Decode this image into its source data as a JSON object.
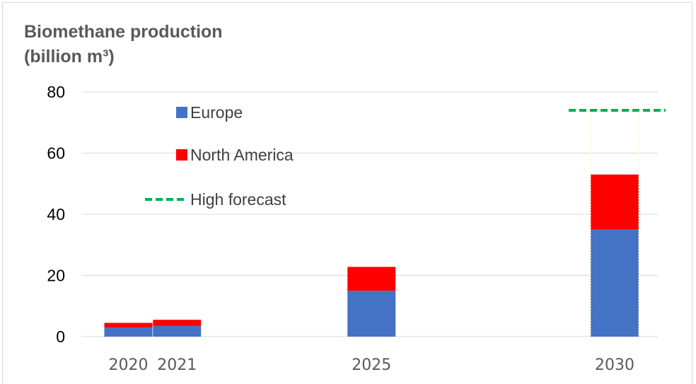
{
  "chart_data": {
    "type": "bar",
    "stacked": true,
    "title_line1": "Biomethane production",
    "title_line2": "(billion m³)",
    "categories": [
      "2020",
      "2021",
      "2025",
      "2030"
    ],
    "x_positions": [
      2020,
      2021,
      2025,
      2030
    ],
    "series": [
      {
        "name": "Europe",
        "values": [
          3,
          3.5,
          15,
          35
        ],
        "color": "#4472c4"
      },
      {
        "name": "North America",
        "values": [
          1.5,
          2,
          7.8,
          18
        ],
        "color": "#ff0000"
      }
    ],
    "high_forecast": {
      "name": "High forecast",
      "value": 74,
      "color": "#00b050",
      "category": "2030"
    },
    "ylim": [
      0,
      80
    ],
    "yticks": [
      0,
      20,
      40,
      60,
      80
    ],
    "grid": true,
    "legend": "top-left, inside plot"
  }
}
